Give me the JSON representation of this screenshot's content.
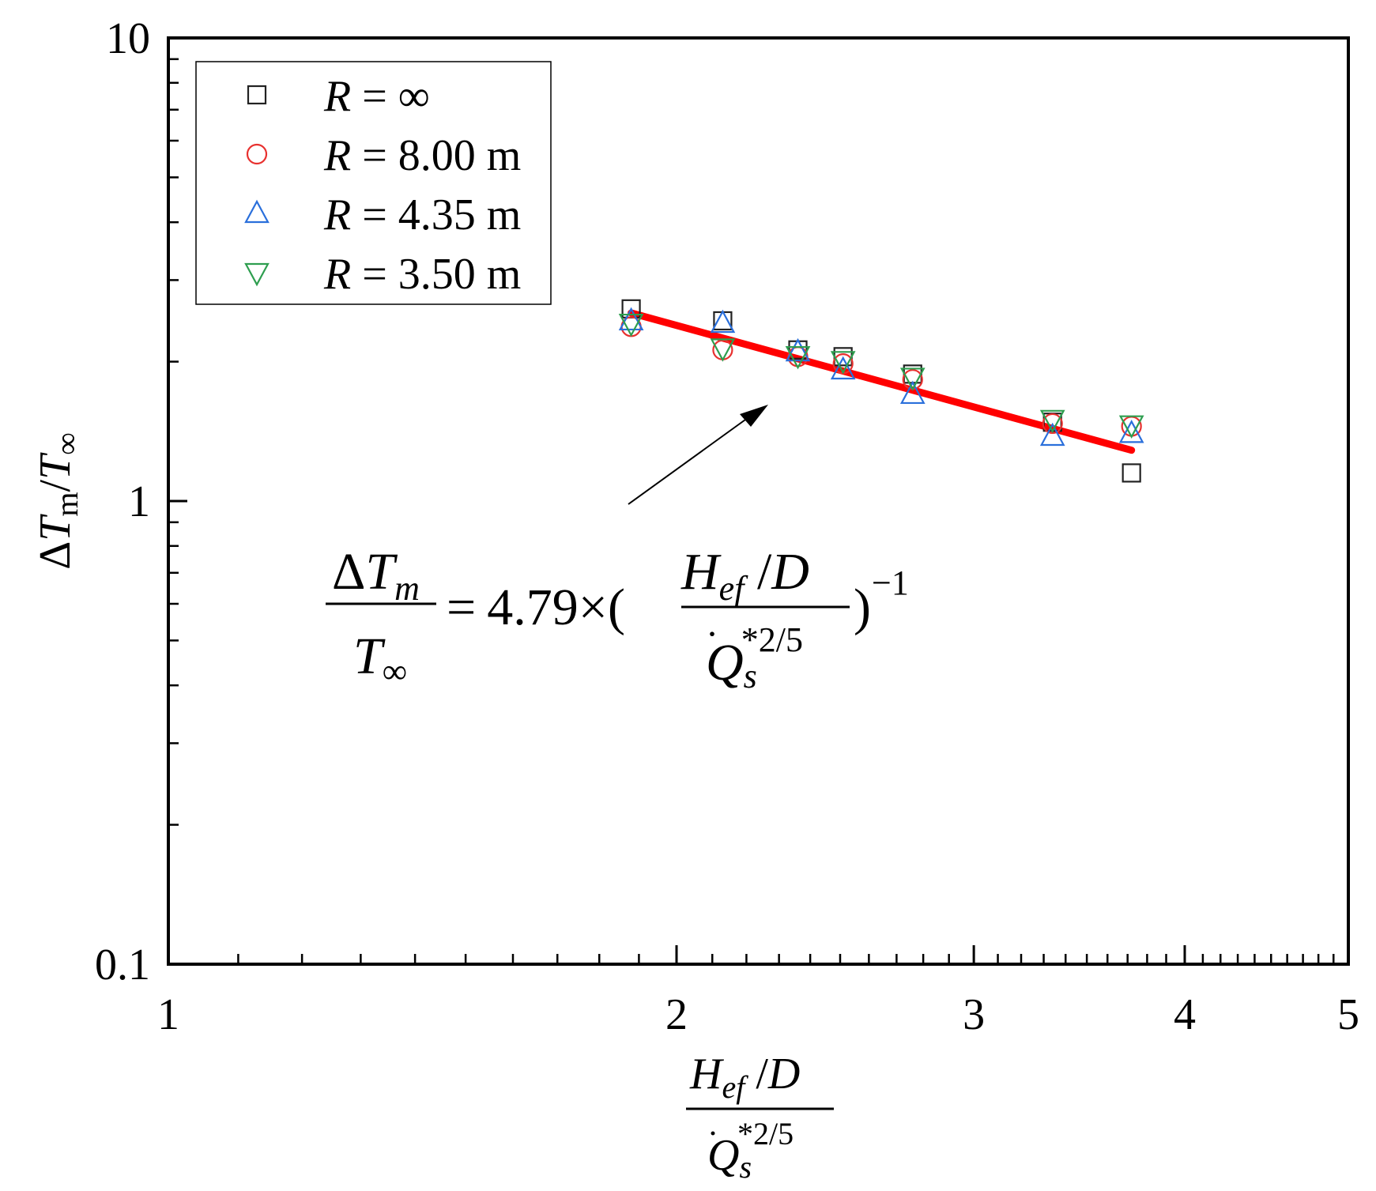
{
  "chart_data": {
    "type": "scatter",
    "x_scale": "log",
    "y_scale": "log",
    "xlim": [
      1,
      5
    ],
    "ylim": [
      0.1,
      10
    ],
    "x_ticks": [
      {
        "value": 1,
        "label": "1"
      },
      {
        "value": 2,
        "label": "2"
      },
      {
        "value": 3,
        "label": "3"
      },
      {
        "value": 4,
        "label": "4"
      },
      {
        "value": 5,
        "label": "5"
      }
    ],
    "y_ticks": [
      {
        "value": 0.1,
        "label": "0.1"
      },
      {
        "value": 1,
        "label": "1"
      },
      {
        "value": 10,
        "label": "10"
      }
    ],
    "grid": false,
    "legend_position": "top-left",
    "series": [
      {
        "name": "R = ∞",
        "marker": "square",
        "color": "#222222",
        "x": [
          1.88,
          2.13,
          2.36,
          2.51,
          2.76,
          3.34,
          3.72
        ],
        "y": [
          2.6,
          2.45,
          2.12,
          2.05,
          1.88,
          1.48,
          1.15
        ]
      },
      {
        "name": "R = 8.00 m",
        "marker": "circle",
        "color": "#e8312f",
        "x": [
          1.88,
          2.13,
          2.36,
          2.51,
          2.76,
          3.34,
          3.72
        ],
        "y": [
          2.38,
          2.12,
          2.05,
          1.98,
          1.83,
          1.47,
          1.45
        ]
      },
      {
        "name": "R = 4.35 m",
        "marker": "triangle-up",
        "color": "#2a6fdb",
        "x": [
          1.88,
          2.13,
          2.36,
          2.51,
          2.76,
          3.34,
          3.72
        ],
        "y": [
          2.45,
          2.42,
          2.1,
          1.92,
          1.7,
          1.38,
          1.4
        ]
      },
      {
        "name": "R = 3.50 m",
        "marker": "triangle-down",
        "color": "#2e9e4f",
        "x": [
          1.88,
          2.13,
          2.36,
          2.51,
          2.76,
          3.34,
          3.72
        ],
        "y": [
          2.42,
          2.14,
          2.06,
          2.01,
          1.85,
          1.5,
          1.46
        ]
      }
    ],
    "fit": {
      "coefficient": 4.79,
      "exponent": -1,
      "x_range": [
        1.88,
        3.72
      ],
      "color": "#ff0000"
    }
  },
  "labels": {
    "legend": [
      {
        "var": "R",
        "rest": " = ∞"
      },
      {
        "var": "R",
        "rest": " = 8.00 m"
      },
      {
        "var": "R",
        "rest": " = 4.35 m"
      },
      {
        "var": "R",
        "rest": " = 3.50 m"
      }
    ],
    "ylabel": {
      "delta": "Δ",
      "t": "T",
      "m": "m",
      "slash": "/",
      "t2": "T",
      "inf": "∞"
    },
    "xlabel": {
      "h": "H",
      "ef": "ef",
      "slash": " /",
      "d": "D",
      "q": "Q",
      "dot": "·",
      "s": "s",
      "exp": "*2/5"
    },
    "equation": {
      "delta": "Δ",
      "t": "T",
      "m": "m",
      "t_den": "T",
      "inf": "∞",
      "equals": "=",
      "coef": "4.79",
      "times": "×",
      "lparen": "(",
      "rparen": ")",
      "h": "H",
      "ef": "ef",
      "slash": " /",
      "d": "D",
      "q": "Q",
      "dot": "·",
      "s": "s",
      "exp": "*2/5",
      "power": "−1"
    }
  }
}
